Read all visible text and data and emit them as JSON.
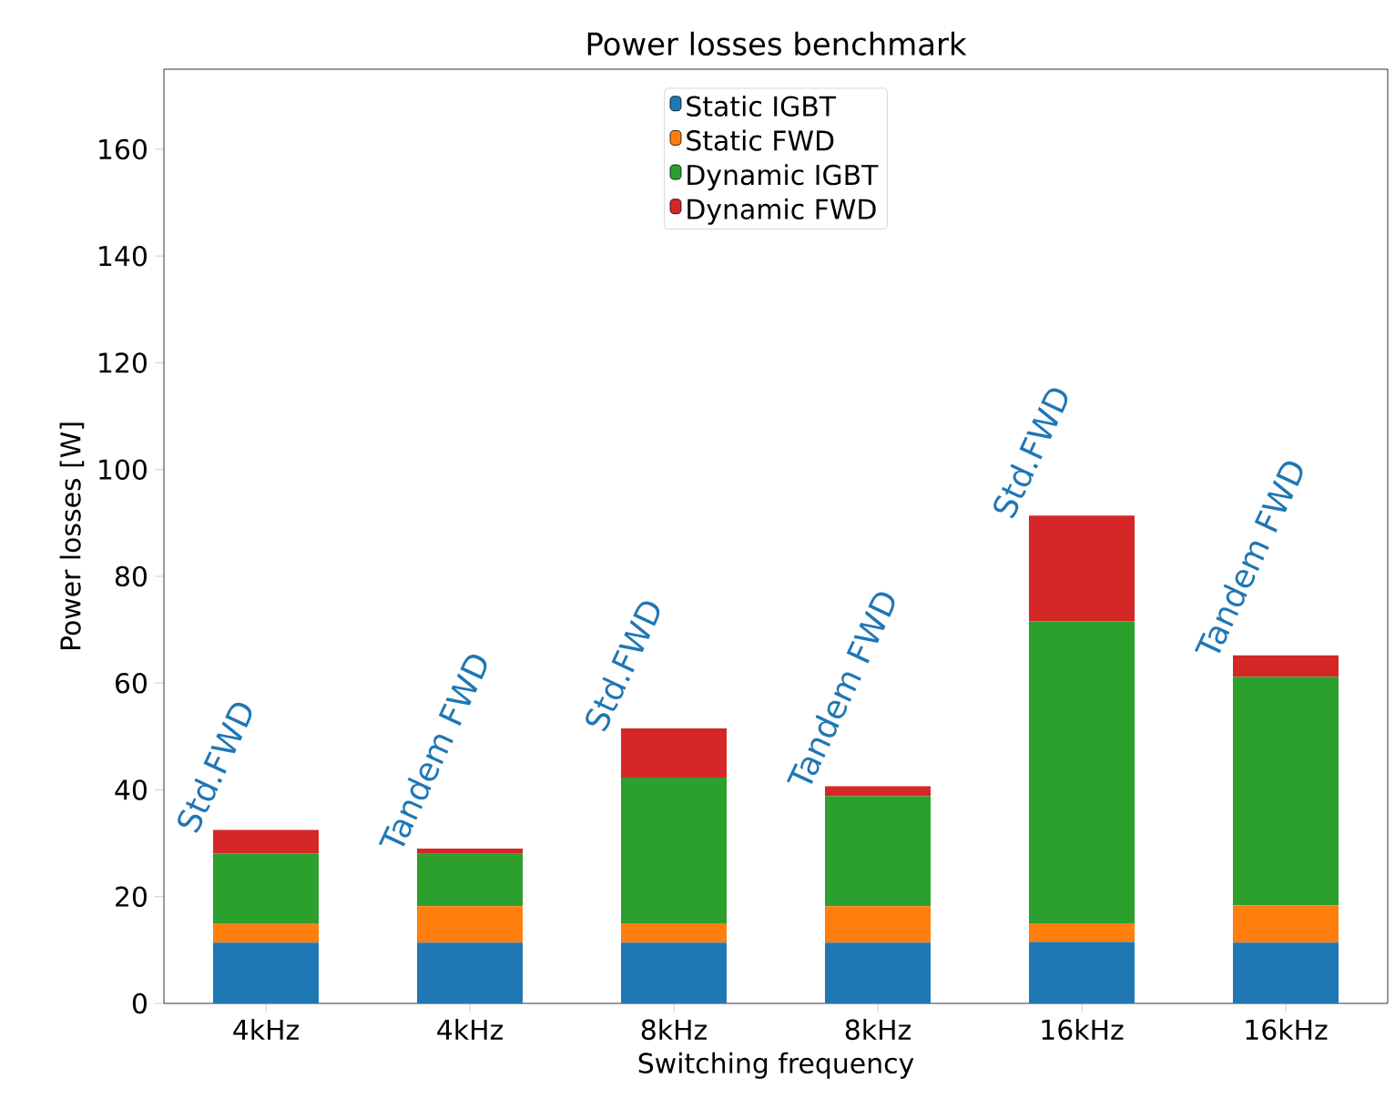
{
  "chart_data": {
    "type": "bar",
    "title": "Power losses benchmark",
    "xlabel": "Switching frequency",
    "ylabel": "Power losses [W]",
    "categories": [
      "4kHz",
      "4kHz",
      "8kHz",
      "8kHz",
      "16kHz",
      "16kHz"
    ],
    "stacked": true,
    "series": [
      {
        "name": "Static IGBT",
        "color": "#1f77b4",
        "values": [
          11.4,
          11.4,
          11.4,
          11.4,
          11.5,
          11.4
        ]
      },
      {
        "name": "Static FWD",
        "color": "#ff7f0e",
        "values": [
          3.5,
          6.8,
          3.6,
          6.8,
          3.5,
          7.0
        ]
      },
      {
        "name": "Dynamic IGBT",
        "color": "#2ca02c",
        "values": [
          13.2,
          9.8,
          27.3,
          20.6,
          56.6,
          42.8
        ]
      },
      {
        "name": "Dynamic FWD",
        "color": "#d62728",
        "values": [
          4.4,
          1.0,
          9.2,
          1.9,
          19.8,
          4.0
        ]
      }
    ],
    "annotations": [
      "Std.FWD",
      "Tandem FWD",
      "Std.FWD",
      "Tandem FWD",
      "Std.FWD",
      "Tandem FWD"
    ],
    "ylim": [
      0,
      175
    ],
    "yticks": [
      0,
      20,
      40,
      60,
      80,
      100,
      120,
      140,
      160
    ],
    "legend": "top"
  }
}
